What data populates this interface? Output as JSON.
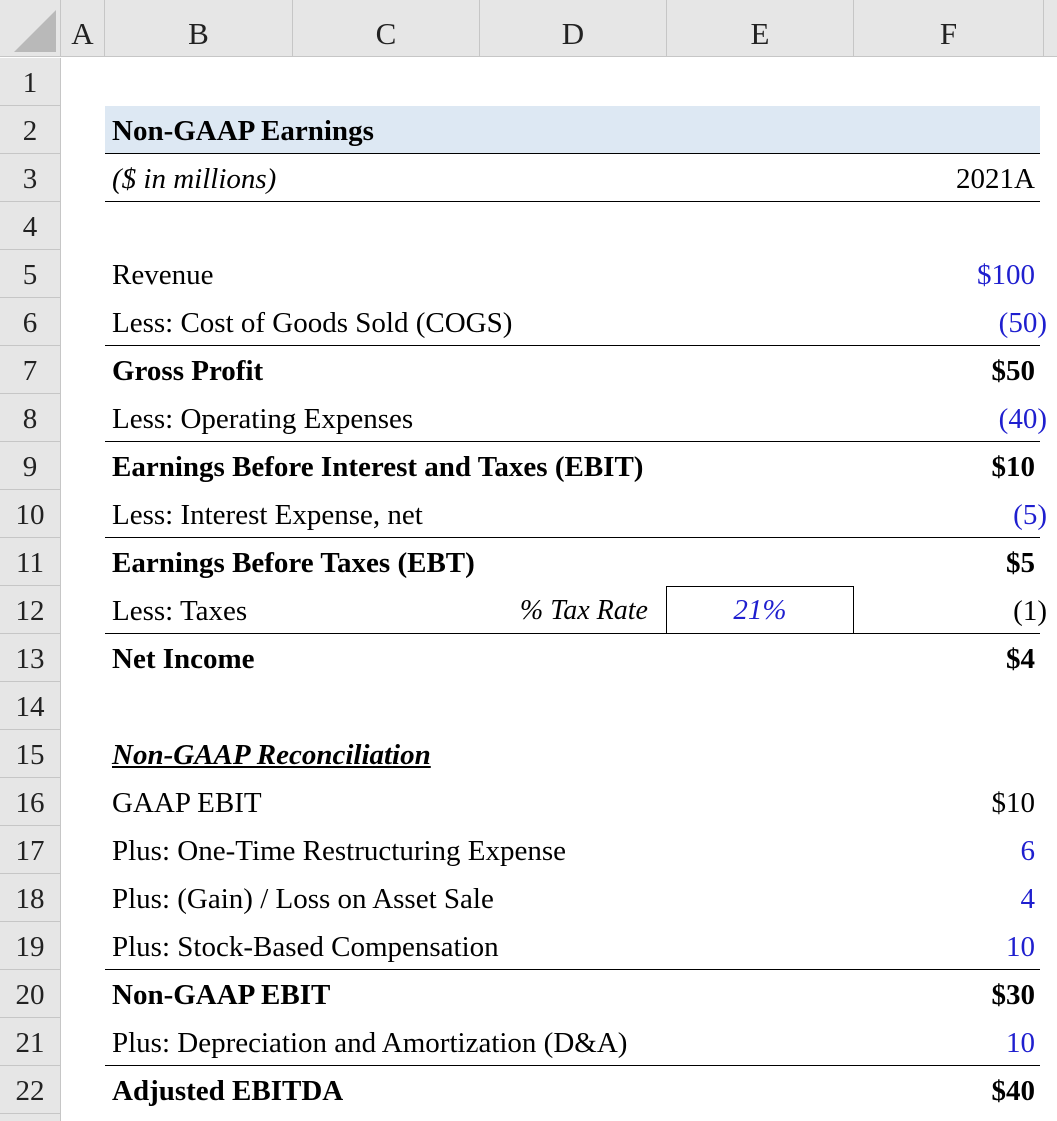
{
  "columns": [
    "A",
    "B",
    "C",
    "D",
    "E",
    "F"
  ],
  "rows": [
    "1",
    "2",
    "3",
    "4",
    "5",
    "6",
    "7",
    "8",
    "9",
    "10",
    "11",
    "12",
    "13",
    "14",
    "15",
    "16",
    "17",
    "18",
    "19",
    "20",
    "21",
    "22"
  ],
  "title": "Non-GAAP Earnings",
  "units": "($ in millions)",
  "period": "2021A",
  "income_statement": {
    "revenue_label": "Revenue",
    "revenue_value": "$100",
    "cogs_label": "Less: Cost of Goods Sold (COGS)",
    "cogs_value": "(50)",
    "gross_profit_label": "Gross Profit",
    "gross_profit_value": "$50",
    "opex_label": "Less: Operating Expenses",
    "opex_value": "(40)",
    "ebit_label": "Earnings Before Interest and Taxes (EBIT)",
    "ebit_value": "$10",
    "interest_label": "Less: Interest Expense, net",
    "interest_value": "(5)",
    "ebt_label": "Earnings Before Taxes (EBT)",
    "ebt_value": "$5",
    "taxes_label": "Less: Taxes",
    "tax_rate_label": "% Tax Rate",
    "tax_rate_value": "21%",
    "taxes_value": "(1)",
    "net_income_label": "Net Income",
    "net_income_value": "$4"
  },
  "reconciliation": {
    "header": "Non-GAAP Reconciliation",
    "gaap_ebit_label": "GAAP EBIT",
    "gaap_ebit_value": "$10",
    "restructuring_label": "Plus: One-Time Restructuring Expense",
    "restructuring_value": "6",
    "asset_sale_label": "Plus: (Gain) / Loss on Asset Sale",
    "asset_sale_value": "4",
    "sbc_label": "Plus: Stock-Based Compensation",
    "sbc_value": "10",
    "non_gaap_ebit_label": "Non-GAAP EBIT",
    "non_gaap_ebit_value": "$30",
    "da_label": "Plus: Depreciation and Amortization (D&A)",
    "da_value": "10",
    "adj_ebitda_label": "Adjusted EBITDA",
    "adj_ebitda_value": "$40"
  },
  "colors": {
    "input_blue": "#1f1fcf",
    "title_fill": "#dde8f3",
    "header_gray": "#e6e6e6"
  }
}
